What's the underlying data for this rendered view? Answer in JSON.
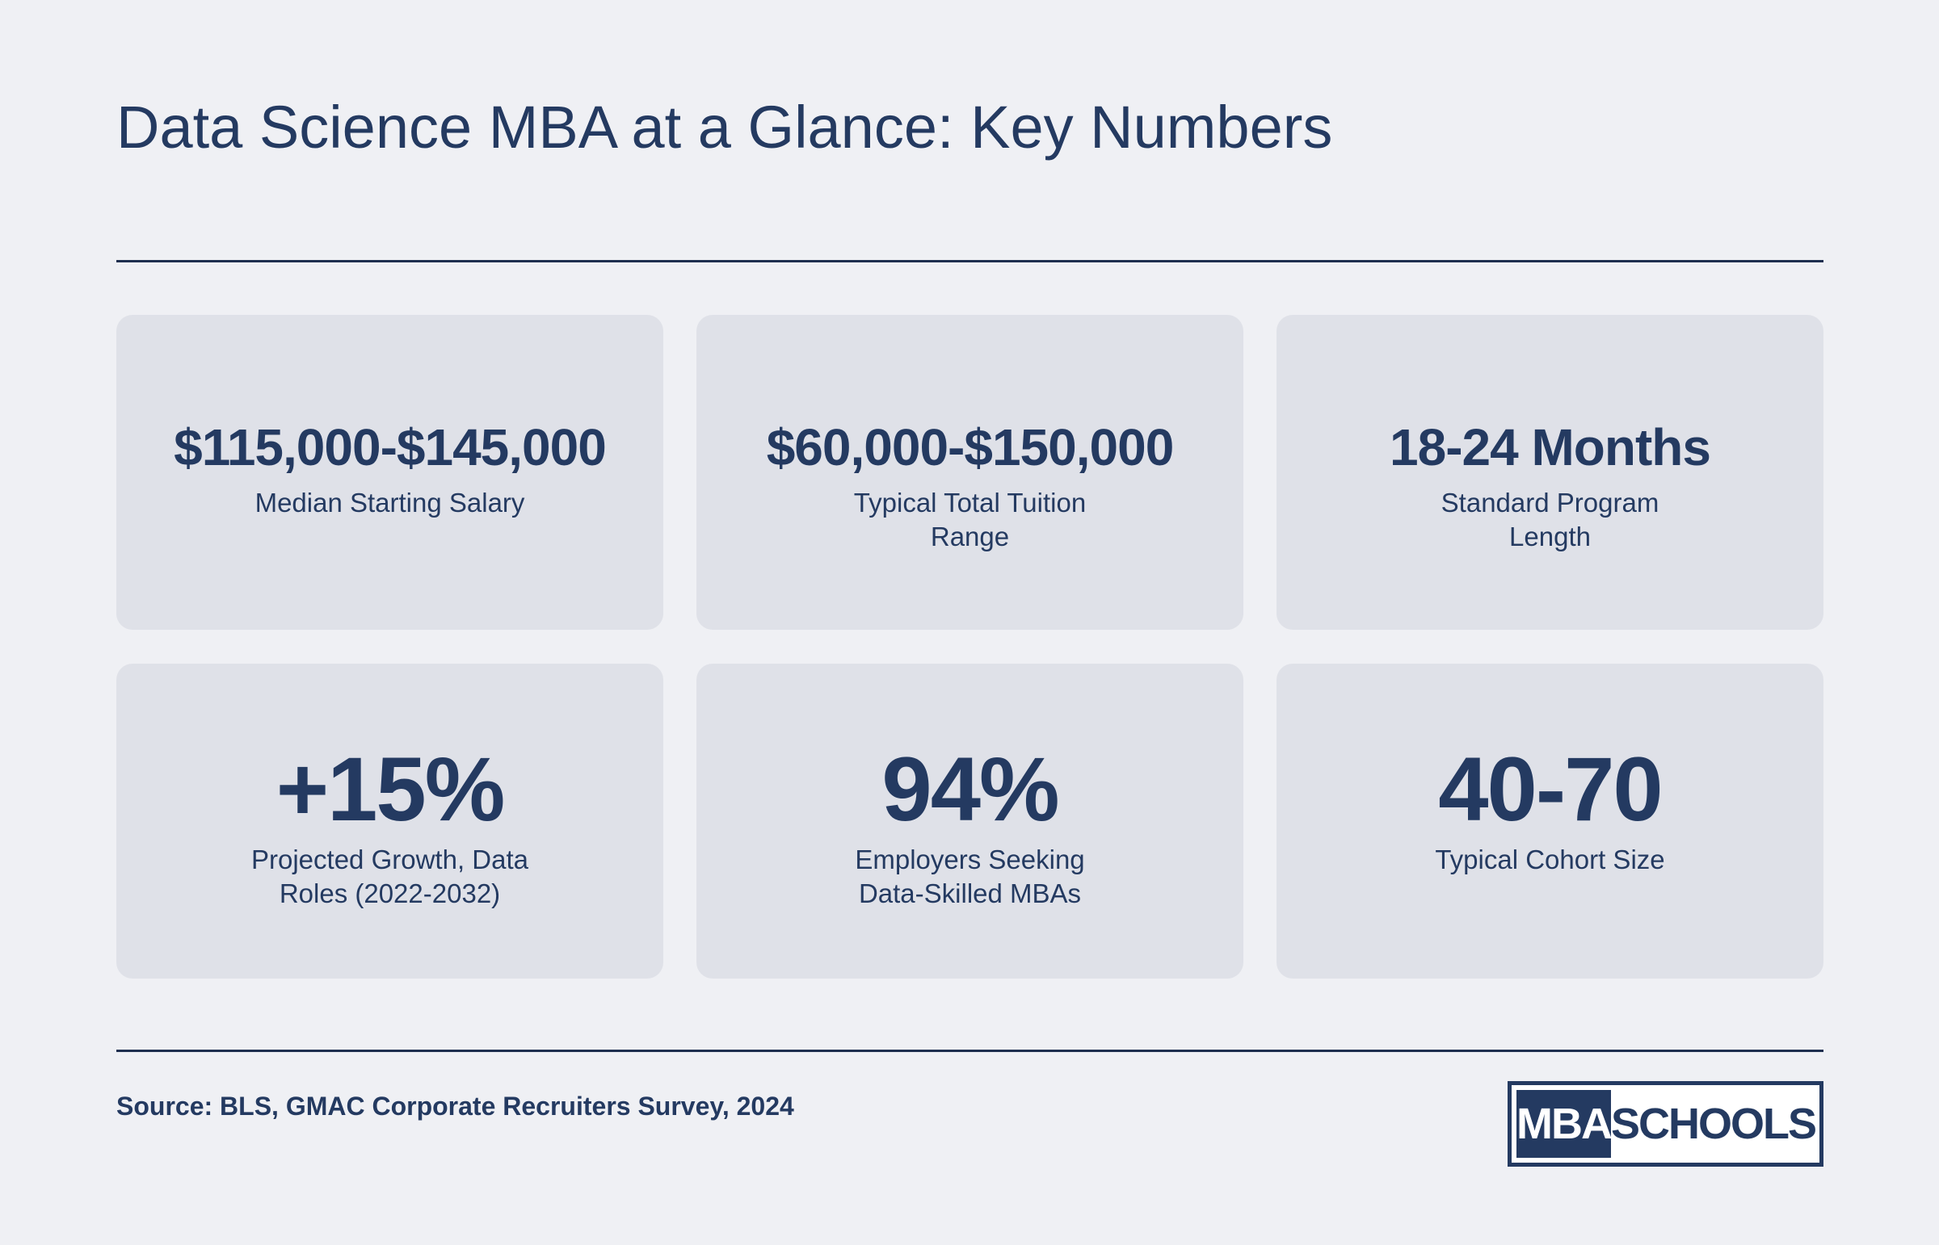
{
  "header": {
    "title": "Data Science MBA at a Glance: Key Numbers"
  },
  "stats": [
    {
      "value": "$115,000-$145,000",
      "label": "Median Starting Salary"
    },
    {
      "value": "$60,000-$150,000",
      "label": "Typical Total Tuition Range"
    },
    {
      "value": "18-24 Months",
      "label": "Standard Program Length"
    },
    {
      "value": "+15%",
      "label": "Projected Growth, Data Roles (2022-2032)"
    },
    {
      "value": "94%",
      "label": "Employers Seeking Data-Skilled MBAs"
    },
    {
      "value": "40-70",
      "label": "Typical Cohort Size"
    }
  ],
  "footer": {
    "source": "Source: BLS, GMAC Corporate Recruiters Survey, 2024",
    "logo_left": "MBA",
    "logo_right": "SCHOOLS"
  },
  "colors": {
    "background": "#eff0f4",
    "card": "#dfe1e8",
    "text": "#243a61",
    "rule": "#1e2f4f"
  }
}
